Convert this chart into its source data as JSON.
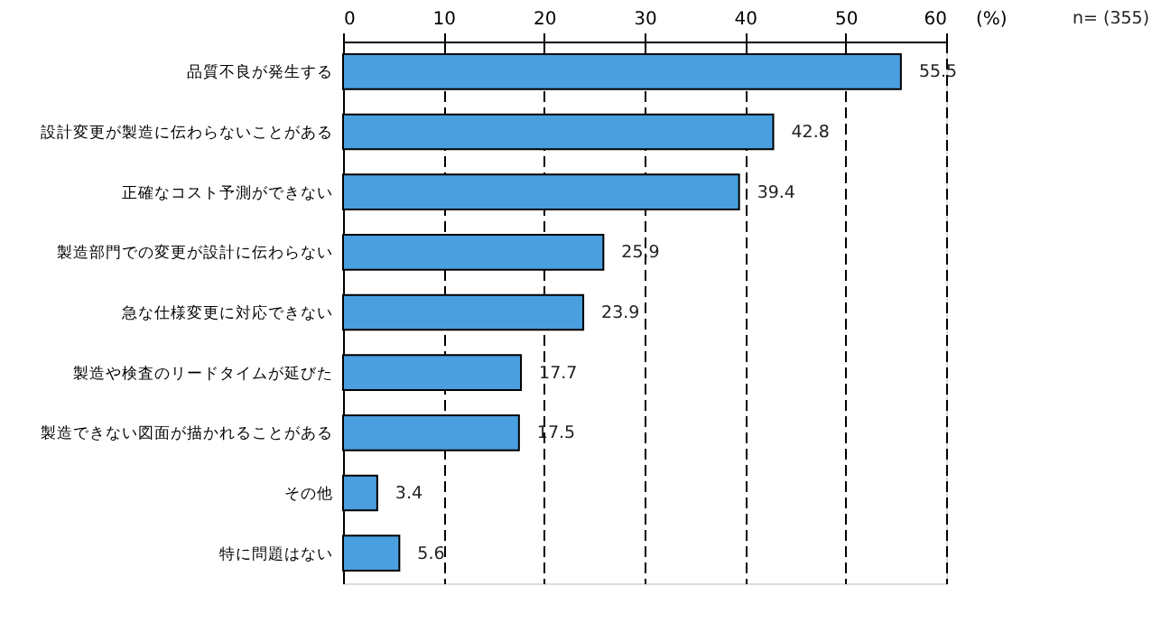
{
  "chart_data": {
    "type": "bar",
    "orientation": "horizontal",
    "xlabel": "(%)",
    "annotations": [
      "n= (355)"
    ],
    "categories": [
      "品質不良が発生する",
      "設計変更が製造に伝わらないことがある",
      "正確なコスト予測ができない",
      "製造部門での変更が設計に伝わらない",
      "急な仕様変更に対応できない",
      "製造や検査のリードタイムが延びた",
      "製造できない図面が描かれることがある",
      "その他",
      "特に問題はない"
    ],
    "values": [
      55.5,
      42.8,
      39.4,
      25.9,
      23.9,
      17.7,
      17.5,
      3.4,
      5.6
    ],
    "color": "#4a9fdf",
    "xlim": [
      0,
      60
    ],
    "xticks": [
      0,
      10,
      20,
      30,
      40,
      50,
      60
    ],
    "grid": "x",
    "data_labels": true
  }
}
